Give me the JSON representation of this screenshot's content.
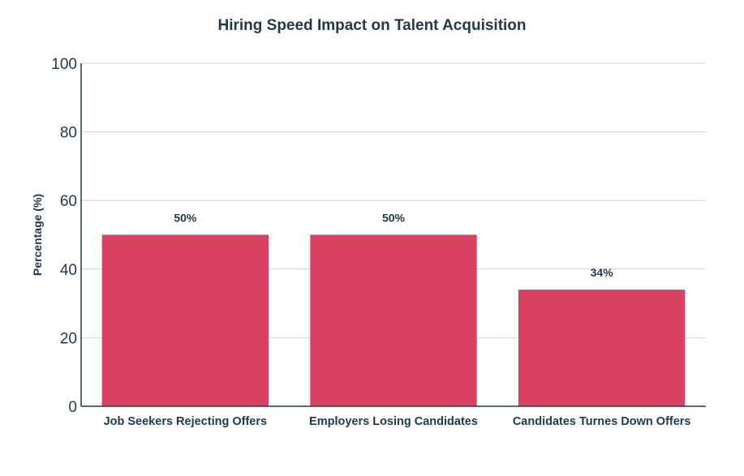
{
  "chart_data": {
    "type": "bar",
    "title": "Hiring Speed Impact on Talent Acquisition",
    "xlabel": "",
    "ylabel": "Percentage (%)",
    "categories": [
      "Job Seekers Rejecting Offers",
      "Employers Losing Candidates",
      "Candidates Turnes Down Offers"
    ],
    "values": [
      50,
      50,
      34
    ],
    "value_labels": [
      "50%",
      "50%",
      "34%"
    ],
    "ylim": [
      0,
      100
    ],
    "yticks": [
      0,
      20,
      40,
      60,
      80,
      100
    ],
    "grid": true,
    "legend": "none",
    "bar_color": "#d94163"
  }
}
